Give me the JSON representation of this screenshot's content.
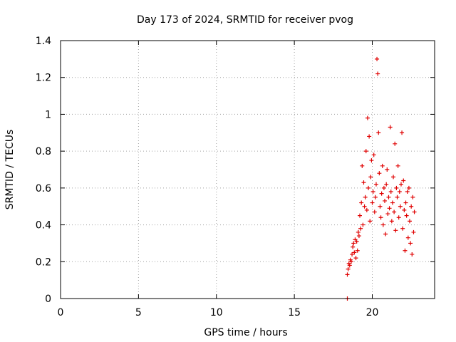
{
  "chart_data": {
    "type": "scatter",
    "title": "Day 173 of 2024, SRMTID for receiver pvog",
    "xlabel": "GPS time / hours",
    "ylabel": "SRMTID / TECUs",
    "xlim": [
      0,
      24
    ],
    "ylim": [
      0,
      1.4
    ],
    "x_ticks": [
      0,
      5,
      10,
      15,
      20
    ],
    "y_ticks": [
      0,
      0.2,
      0.4,
      0.6,
      0.8,
      1,
      1.2,
      1.4
    ],
    "x_tick_labels": [
      "0",
      "5",
      "10",
      "15",
      "20"
    ],
    "y_tick_labels": [
      "0",
      "0.2",
      "0.4",
      "0.6",
      "0.8",
      "1",
      "1.2",
      "1.4"
    ],
    "grid": true,
    "marker": "+",
    "color": "#e00000",
    "series": [
      {
        "name": "SRMTID",
        "x": [
          18.4,
          18.4,
          18.45,
          18.5,
          18.55,
          18.6,
          18.65,
          18.7,
          18.75,
          18.8,
          18.85,
          18.9,
          18.95,
          19.0,
          19.05,
          19.1,
          19.15,
          19.2,
          19.25,
          19.3,
          19.35,
          19.4,
          19.45,
          19.5,
          19.55,
          19.6,
          19.65,
          19.7,
          19.75,
          19.8,
          19.85,
          19.9,
          19.95,
          20.0,
          20.05,
          20.1,
          20.15,
          20.2,
          20.25,
          20.3,
          20.35,
          20.4,
          20.45,
          20.5,
          20.55,
          20.6,
          20.65,
          20.7,
          20.75,
          20.8,
          20.85,
          20.9,
          20.95,
          21.0,
          21.05,
          21.1,
          21.15,
          21.2,
          21.25,
          21.3,
          21.35,
          21.4,
          21.45,
          21.5,
          21.55,
          21.6,
          21.65,
          21.7,
          21.75,
          21.8,
          21.85,
          21.9,
          21.95,
          22.0,
          22.05,
          22.1,
          22.15,
          22.2,
          22.25,
          22.3,
          22.35,
          22.4,
          22.45,
          22.5,
          22.55,
          22.6,
          22.65,
          22.7
        ],
        "y": [
          0.0,
          0.13,
          0.16,
          0.19,
          0.18,
          0.21,
          0.2,
          0.24,
          0.28,
          0.3,
          0.25,
          0.32,
          0.22,
          0.31,
          0.26,
          0.36,
          0.34,
          0.45,
          0.38,
          0.52,
          0.72,
          0.4,
          0.63,
          0.5,
          0.55,
          0.8,
          0.48,
          0.98,
          0.6,
          0.88,
          0.42,
          0.66,
          0.75,
          0.52,
          0.58,
          0.78,
          0.47,
          0.55,
          0.62,
          1.3,
          1.22,
          0.9,
          0.68,
          0.5,
          0.44,
          0.57,
          0.72,
          0.4,
          0.6,
          0.53,
          0.35,
          0.62,
          0.7,
          0.46,
          0.55,
          0.49,
          0.93,
          0.58,
          0.42,
          0.52,
          0.66,
          0.47,
          0.84,
          0.37,
          0.6,
          0.55,
          0.72,
          0.44,
          0.58,
          0.5,
          0.62,
          0.9,
          0.38,
          0.64,
          0.48,
          0.26,
          0.52,
          0.45,
          0.58,
          0.33,
          0.6,
          0.42,
          0.3,
          0.5,
          0.24,
          0.55,
          0.36,
          0.47
        ]
      }
    ]
  }
}
